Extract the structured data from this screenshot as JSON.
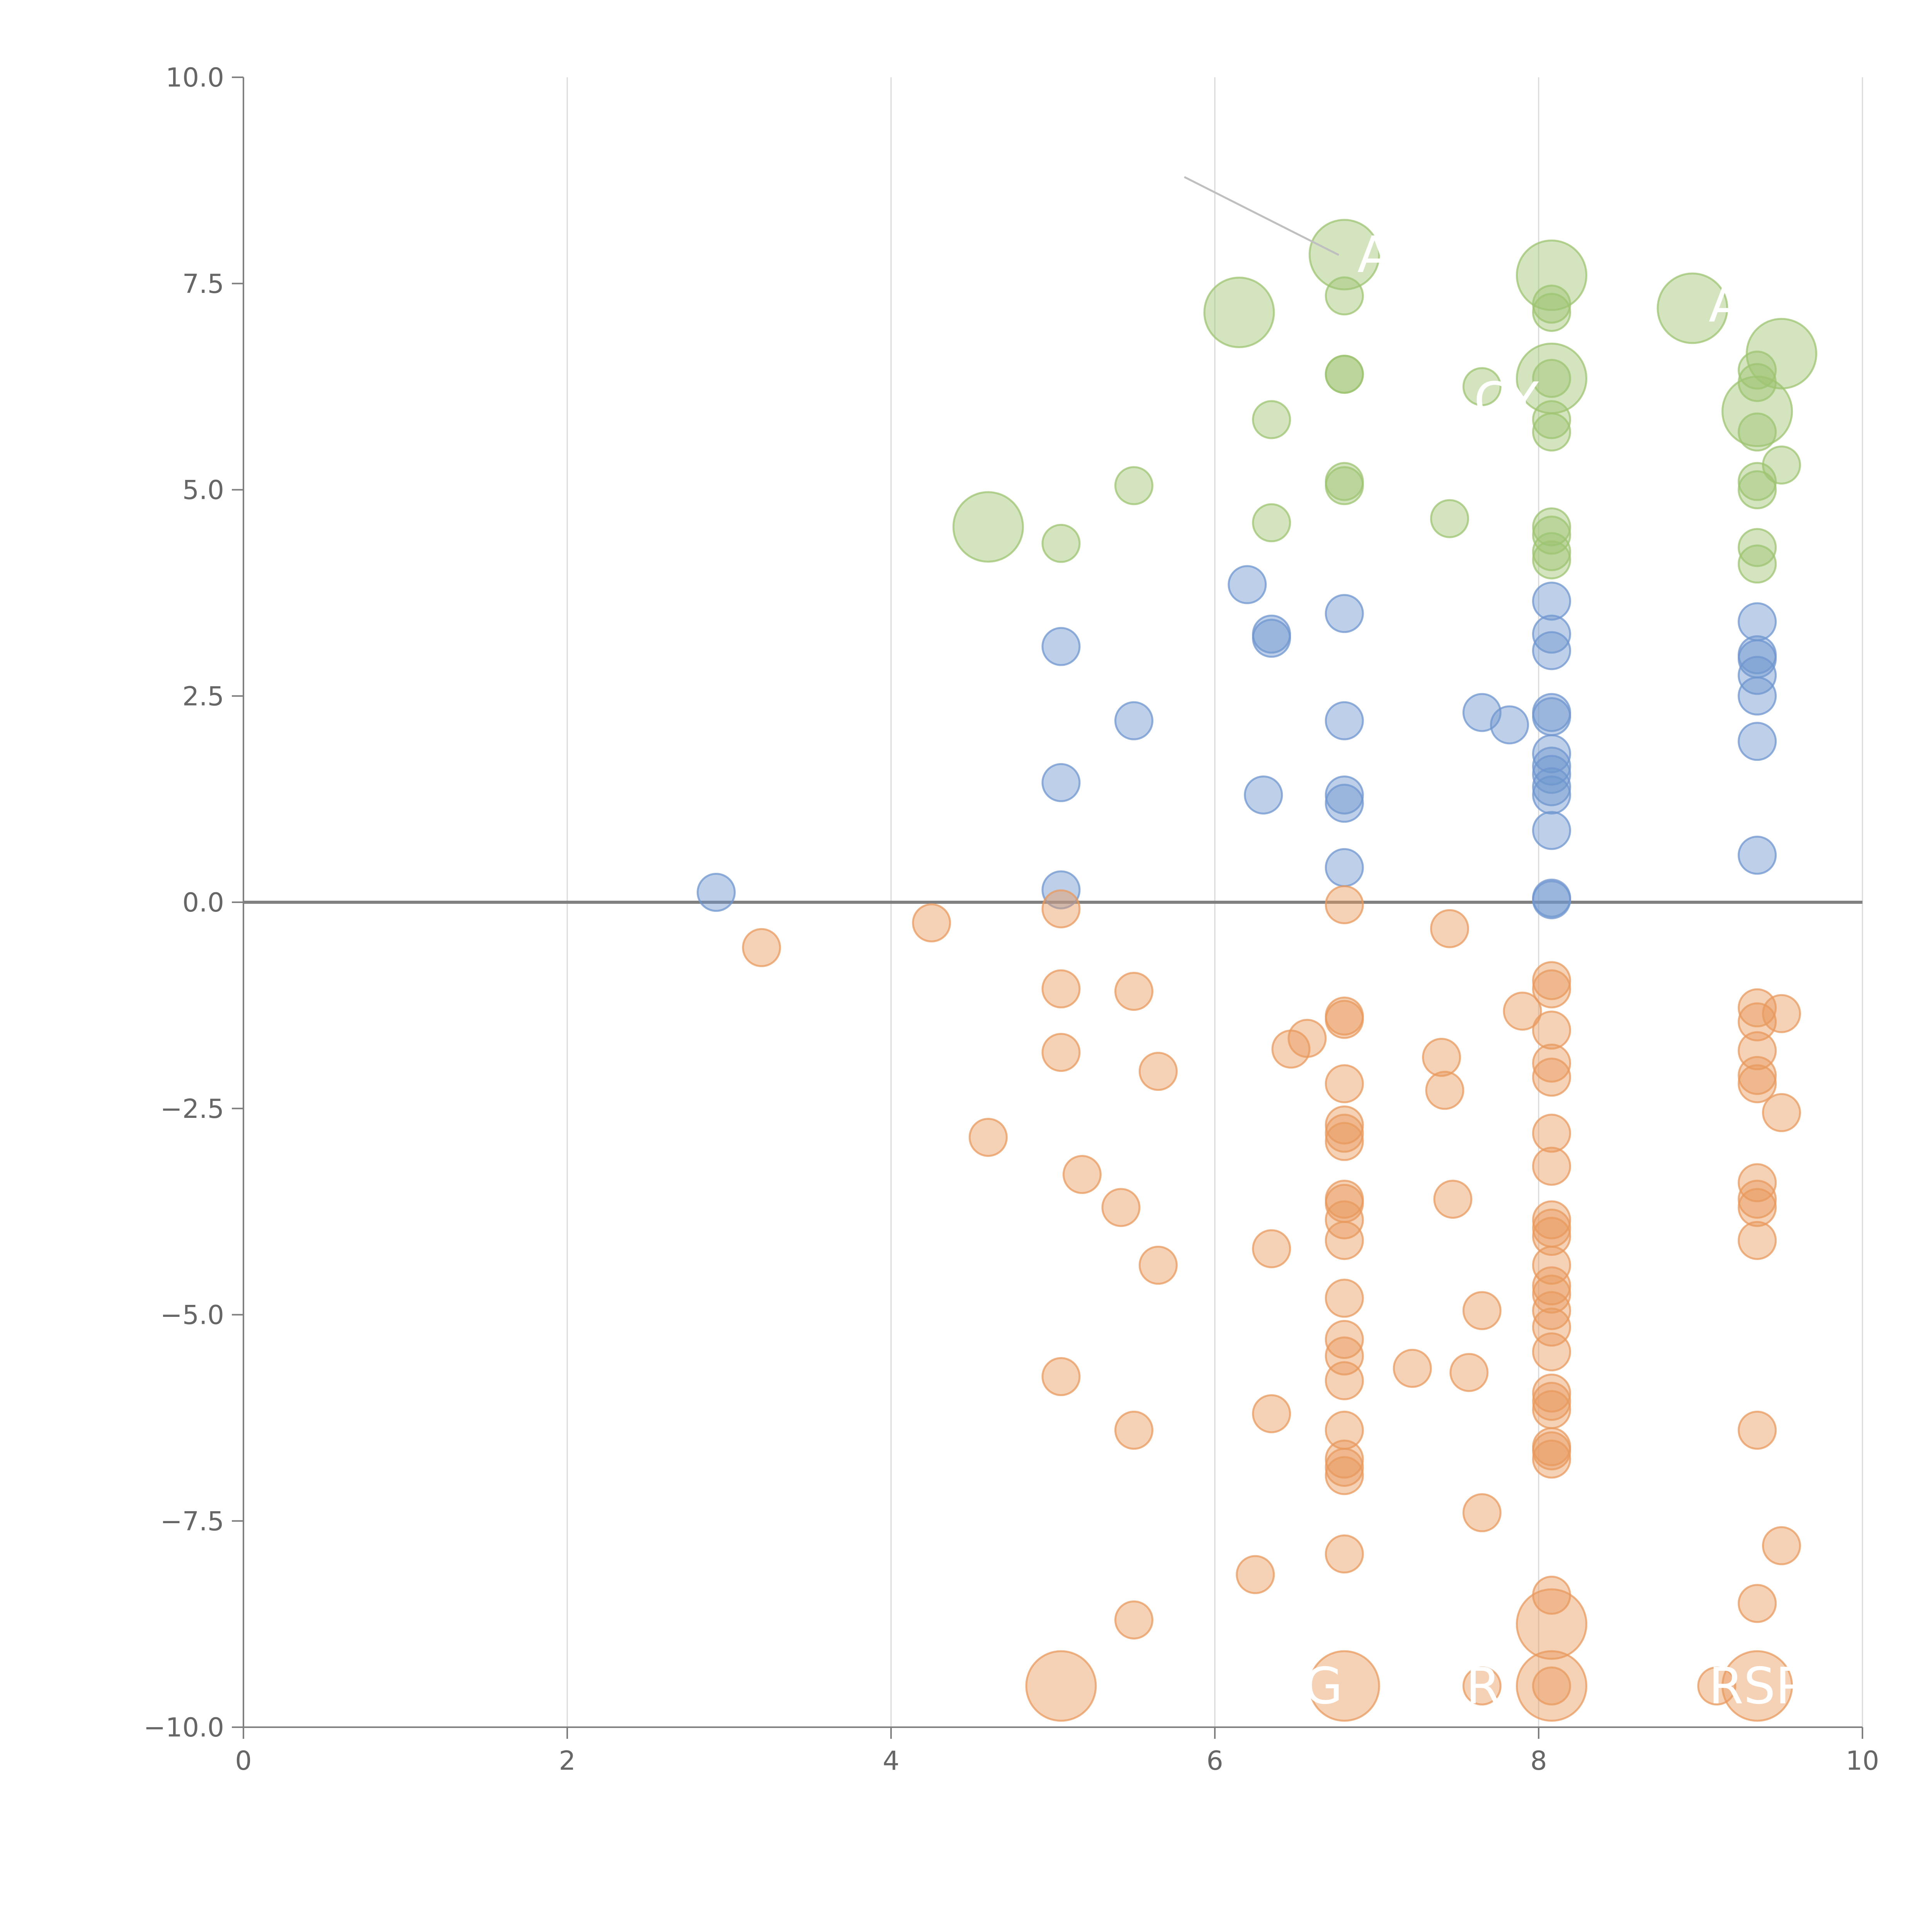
{
  "chart_data": {
    "type": "scatter",
    "title": "",
    "xlabel": "",
    "ylabel": "",
    "xlim": [
      0,
      10
    ],
    "ylim": [
      -10,
      10
    ],
    "grid": "vertical",
    "x_ticks": [
      "0",
      "2",
      "4",
      "6",
      "8",
      "10"
    ],
    "y_ticks": [
      "−10.0",
      "−7.5",
      "−5.0",
      "−2.5",
      "0.0",
      "2.5",
      "5.0",
      "7.5",
      "10.0"
    ],
    "colors": {
      "green": "#9dc472",
      "blue": "#6f96cf",
      "orange": "#e89a5e",
      "axis": "#7f7f7f",
      "grid": "#d9d9d9",
      "zero_line": "#808080"
    },
    "series": [
      {
        "name": "green",
        "color": "#9dc472",
        "points": [
          {
            "x": 4.6,
            "y": 4.55,
            "s": 3
          },
          {
            "x": 5.05,
            "y": 4.35,
            "s": 1
          },
          {
            "x": 5.5,
            "y": 5.05,
            "s": 1
          },
          {
            "x": 6.15,
            "y": 7.15,
            "s": 3
          },
          {
            "x": 6.35,
            "y": 5.85,
            "s": 1
          },
          {
            "x": 6.35,
            "y": 4.6,
            "s": 1
          },
          {
            "x": 6.8,
            "y": 7.85,
            "s": 3
          },
          {
            "x": 6.8,
            "y": 7.35,
            "s": 1
          },
          {
            "x": 6.8,
            "y": 6.4,
            "s": 1
          },
          {
            "x": 6.8,
            "y": 6.4,
            "s": 1
          },
          {
            "x": 6.8,
            "y": 5.1,
            "s": 1
          },
          {
            "x": 6.8,
            "y": 5.05,
            "s": 1
          },
          {
            "x": 7.45,
            "y": 4.65,
            "s": 1
          },
          {
            "x": 7.65,
            "y": 6.25,
            "s": 1
          },
          {
            "x": 8.08,
            "y": 7.6,
            "s": 3
          },
          {
            "x": 8.08,
            "y": 7.25,
            "s": 1
          },
          {
            "x": 8.08,
            "y": 7.15,
            "s": 1
          },
          {
            "x": 8.08,
            "y": 6.35,
            "s": 3
          },
          {
            "x": 8.08,
            "y": 6.35,
            "s": 1
          },
          {
            "x": 8.08,
            "y": 5.85,
            "s": 1
          },
          {
            "x": 8.08,
            "y": 5.7,
            "s": 1
          },
          {
            "x": 8.08,
            "y": 4.55,
            "s": 1
          },
          {
            "x": 8.08,
            "y": 4.45,
            "s": 1
          },
          {
            "x": 8.08,
            "y": 4.25,
            "s": 1
          },
          {
            "x": 8.08,
            "y": 4.15,
            "s": 1
          },
          {
            "x": 8.95,
            "y": 7.2,
            "s": 3
          },
          {
            "x": 9.35,
            "y": 6.45,
            "s": 1
          },
          {
            "x": 9.35,
            "y": 6.3,
            "s": 1
          },
          {
            "x": 9.35,
            "y": 5.95,
            "s": 3
          },
          {
            "x": 9.35,
            "y": 5.7,
            "s": 1
          },
          {
            "x": 9.35,
            "y": 5.1,
            "s": 1
          },
          {
            "x": 9.35,
            "y": 5.0,
            "s": 1
          },
          {
            "x": 9.35,
            "y": 4.3,
            "s": 1
          },
          {
            "x": 9.35,
            "y": 4.1,
            "s": 1
          },
          {
            "x": 9.5,
            "y": 6.65,
            "s": 3
          },
          {
            "x": 9.5,
            "y": 5.3,
            "s": 1
          }
        ]
      },
      {
        "name": "blue",
        "color": "#6f96cf",
        "points": [
          {
            "x": 2.92,
            "y": 0.12,
            "s": 1
          },
          {
            "x": 5.05,
            "y": 3.1,
            "s": 1
          },
          {
            "x": 5.05,
            "y": 1.45,
            "s": 1
          },
          {
            "x": 5.05,
            "y": 0.15,
            "s": 1
          },
          {
            "x": 5.5,
            "y": 2.2,
            "s": 1
          },
          {
            "x": 6.2,
            "y": 3.85,
            "s": 1
          },
          {
            "x": 6.3,
            "y": 1.3,
            "s": 1
          },
          {
            "x": 6.35,
            "y": 3.25,
            "s": 1
          },
          {
            "x": 6.35,
            "y": 3.2,
            "s": 1
          },
          {
            "x": 6.8,
            "y": 3.5,
            "s": 1
          },
          {
            "x": 6.8,
            "y": 2.2,
            "s": 1
          },
          {
            "x": 6.8,
            "y": 1.3,
            "s": 1
          },
          {
            "x": 6.8,
            "y": 1.2,
            "s": 1
          },
          {
            "x": 6.8,
            "y": 0.42,
            "s": 1
          },
          {
            "x": 7.65,
            "y": 2.3,
            "s": 1
          },
          {
            "x": 7.82,
            "y": 2.15,
            "s": 1
          },
          {
            "x": 8.08,
            "y": 3.65,
            "s": 1
          },
          {
            "x": 8.08,
            "y": 3.25,
            "s": 1
          },
          {
            "x": 8.08,
            "y": 3.05,
            "s": 1
          },
          {
            "x": 8.08,
            "y": 2.3,
            "s": 1
          },
          {
            "x": 8.08,
            "y": 2.25,
            "s": 1
          },
          {
            "x": 8.08,
            "y": 1.8,
            "s": 1
          },
          {
            "x": 8.08,
            "y": 1.65,
            "s": 1
          },
          {
            "x": 8.08,
            "y": 1.55,
            "s": 1
          },
          {
            "x": 8.08,
            "y": 1.4,
            "s": 1
          },
          {
            "x": 8.08,
            "y": 1.3,
            "s": 1
          },
          {
            "x": 8.08,
            "y": 0.87,
            "s": 1
          },
          {
            "x": 8.08,
            "y": 0.05,
            "s": 1
          },
          {
            "x": 8.08,
            "y": 0.03,
            "s": 1
          },
          {
            "x": 9.35,
            "y": 3.4,
            "s": 1
          },
          {
            "x": 9.35,
            "y": 3.0,
            "s": 1
          },
          {
            "x": 9.35,
            "y": 2.95,
            "s": 1
          },
          {
            "x": 9.35,
            "y": 2.75,
            "s": 1
          },
          {
            "x": 9.35,
            "y": 2.5,
            "s": 1
          },
          {
            "x": 9.35,
            "y": 1.95,
            "s": 1
          },
          {
            "x": 9.35,
            "y": 0.57,
            "s": 1
          }
        ]
      },
      {
        "name": "orange",
        "color": "#e89a5e",
        "points": [
          {
            "x": 3.2,
            "y": -0.55,
            "s": 1
          },
          {
            "x": 4.25,
            "y": -0.25,
            "s": 1
          },
          {
            "x": 4.6,
            "y": -2.85,
            "s": 1
          },
          {
            "x": 5.05,
            "y": -0.08,
            "s": 1
          },
          {
            "x": 5.05,
            "y": -1.05,
            "s": 1
          },
          {
            "x": 5.05,
            "y": -1.82,
            "s": 1
          },
          {
            "x": 5.05,
            "y": -5.75,
            "s": 1
          },
          {
            "x": 5.05,
            "y": -9.5,
            "s": 3
          },
          {
            "x": 5.18,
            "y": -3.3,
            "s": 1
          },
          {
            "x": 5.42,
            "y": -3.7,
            "s": 1
          },
          {
            "x": 5.5,
            "y": -1.08,
            "s": 1
          },
          {
            "x": 5.5,
            "y": -6.4,
            "s": 1
          },
          {
            "x": 5.5,
            "y": -8.7,
            "s": 1
          },
          {
            "x": 5.65,
            "y": -2.05,
            "s": 1
          },
          {
            "x": 5.65,
            "y": -4.4,
            "s": 1
          },
          {
            "x": 6.25,
            "y": -8.15,
            "s": 1
          },
          {
            "x": 6.35,
            "y": -4.2,
            "s": 1
          },
          {
            "x": 6.35,
            "y": -6.2,
            "s": 1
          },
          {
            "x": 6.47,
            "y": -1.78,
            "s": 1
          },
          {
            "x": 6.57,
            "y": -1.65,
            "s": 1
          },
          {
            "x": 6.8,
            "y": -0.03,
            "s": 1
          },
          {
            "x": 6.8,
            "y": -1.38,
            "s": 1
          },
          {
            "x": 6.8,
            "y": -1.42,
            "s": 1
          },
          {
            "x": 6.8,
            "y": -2.2,
            "s": 1
          },
          {
            "x": 6.8,
            "y": -2.7,
            "s": 1
          },
          {
            "x": 6.8,
            "y": -2.8,
            "s": 1
          },
          {
            "x": 6.8,
            "y": -2.9,
            "s": 1
          },
          {
            "x": 6.8,
            "y": -3.6,
            "s": 1
          },
          {
            "x": 6.8,
            "y": -3.65,
            "s": 1
          },
          {
            "x": 6.8,
            "y": -3.85,
            "s": 1
          },
          {
            "x": 6.8,
            "y": -4.1,
            "s": 1
          },
          {
            "x": 6.8,
            "y": -4.8,
            "s": 1
          },
          {
            "x": 6.8,
            "y": -5.3,
            "s": 1
          },
          {
            "x": 6.8,
            "y": -5.5,
            "s": 1
          },
          {
            "x": 6.8,
            "y": -5.8,
            "s": 1
          },
          {
            "x": 6.8,
            "y": -6.4,
            "s": 1
          },
          {
            "x": 6.8,
            "y": -6.75,
            "s": 1
          },
          {
            "x": 6.8,
            "y": -6.85,
            "s": 1
          },
          {
            "x": 6.8,
            "y": -6.95,
            "s": 1
          },
          {
            "x": 6.8,
            "y": -7.9,
            "s": 1
          },
          {
            "x": 6.8,
            "y": -9.5,
            "s": 3
          },
          {
            "x": 7.22,
            "y": -5.65,
            "s": 1
          },
          {
            "x": 7.4,
            "y": -1.88,
            "s": 1
          },
          {
            "x": 7.42,
            "y": -2.28,
            "s": 1
          },
          {
            "x": 7.45,
            "y": -0.32,
            "s": 1
          },
          {
            "x": 7.47,
            "y": -3.6,
            "s": 1
          },
          {
            "x": 7.57,
            "y": -5.7,
            "s": 1
          },
          {
            "x": 7.65,
            "y": -4.95,
            "s": 1
          },
          {
            "x": 7.65,
            "y": -7.4,
            "s": 1
          },
          {
            "x": 7.65,
            "y": -9.5,
            "s": 1
          },
          {
            "x": 7.9,
            "y": -1.32,
            "s": 1
          },
          {
            "x": 8.08,
            "y": -0.95,
            "s": 1
          },
          {
            "x": 8.08,
            "y": -1.05,
            "s": 1
          },
          {
            "x": 8.08,
            "y": -1.55,
            "s": 1
          },
          {
            "x": 8.08,
            "y": -1.95,
            "s": 1
          },
          {
            "x": 8.08,
            "y": -2.12,
            "s": 1
          },
          {
            "x": 8.08,
            "y": -2.8,
            "s": 1
          },
          {
            "x": 8.08,
            "y": -3.2,
            "s": 1
          },
          {
            "x": 8.08,
            "y": -3.85,
            "s": 1
          },
          {
            "x": 8.08,
            "y": -3.95,
            "s": 1
          },
          {
            "x": 8.08,
            "y": -4.05,
            "s": 1
          },
          {
            "x": 8.08,
            "y": -4.4,
            "s": 1
          },
          {
            "x": 8.08,
            "y": -4.65,
            "s": 1
          },
          {
            "x": 8.08,
            "y": -4.75,
            "s": 1
          },
          {
            "x": 8.08,
            "y": -4.95,
            "s": 1
          },
          {
            "x": 8.08,
            "y": -5.15,
            "s": 1
          },
          {
            "x": 8.08,
            "y": -5.45,
            "s": 1
          },
          {
            "x": 8.08,
            "y": -5.95,
            "s": 1
          },
          {
            "x": 8.08,
            "y": -6.05,
            "s": 1
          },
          {
            "x": 8.08,
            "y": -6.15,
            "s": 1
          },
          {
            "x": 8.08,
            "y": -6.6,
            "s": 1
          },
          {
            "x": 8.08,
            "y": -6.65,
            "s": 1
          },
          {
            "x": 8.08,
            "y": -6.75,
            "s": 1
          },
          {
            "x": 8.08,
            "y": -8.4,
            "s": 1
          },
          {
            "x": 8.08,
            "y": -8.75,
            "s": 3
          },
          {
            "x": 8.08,
            "y": -9.5,
            "s": 3
          },
          {
            "x": 8.08,
            "y": -9.5,
            "s": 1
          },
          {
            "x": 9.1,
            "y": -9.5,
            "s": 1
          },
          {
            "x": 9.35,
            "y": -1.28,
            "s": 1
          },
          {
            "x": 9.35,
            "y": -1.45,
            "s": 1
          },
          {
            "x": 9.35,
            "y": -1.8,
            "s": 1
          },
          {
            "x": 9.35,
            "y": -2.1,
            "s": 1
          },
          {
            "x": 9.35,
            "y": -2.2,
            "s": 1
          },
          {
            "x": 9.35,
            "y": -3.4,
            "s": 1
          },
          {
            "x": 9.35,
            "y": -3.6,
            "s": 1
          },
          {
            "x": 9.35,
            "y": -3.7,
            "s": 1
          },
          {
            "x": 9.35,
            "y": -4.1,
            "s": 1
          },
          {
            "x": 9.35,
            "y": -6.4,
            "s": 1
          },
          {
            "x": 9.35,
            "y": -8.5,
            "s": 1
          },
          {
            "x": 9.35,
            "y": -9.5,
            "s": 3
          },
          {
            "x": 9.5,
            "y": -1.35,
            "s": 1
          },
          {
            "x": 9.5,
            "y": -2.55,
            "s": 1
          },
          {
            "x": 9.5,
            "y": -7.8,
            "s": 1
          }
        ]
      }
    ],
    "annotations": [
      {
        "text": "A",
        "x": 6.88,
        "y": 7.85
      },
      {
        "text": "CY",
        "x": 7.6,
        "y": 6.08
      },
      {
        "text": "A",
        "x": 9.05,
        "y": 7.25
      },
      {
        "text": "G",
        "x": 6.55,
        "y": -9.5
      },
      {
        "text": "R",
        "x": 7.55,
        "y": -9.5
      },
      {
        "text": "RSP",
        "x": 9.05,
        "y": -9.5
      }
    ]
  }
}
